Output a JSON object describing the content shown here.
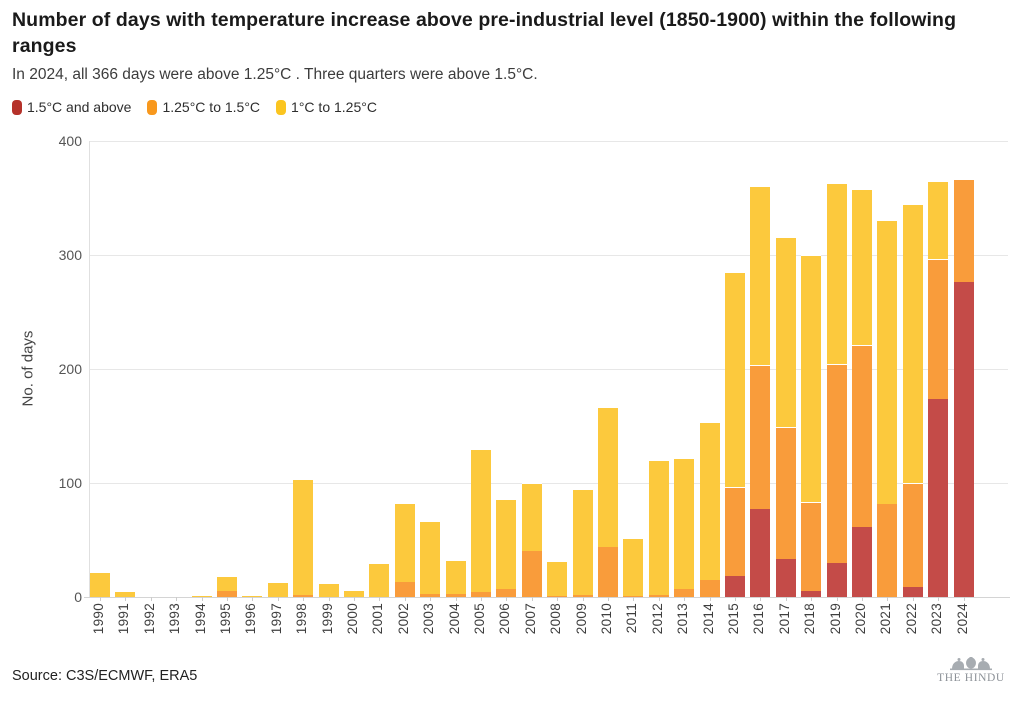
{
  "header": {
    "title": "Number of days with temperature increase above pre-industrial level (1850-1900) within the following ranges",
    "subtitle": "In 2024, all 366 days were above 1.25°C . Three quarters were above 1.5°C."
  },
  "legend": [
    {
      "label": "1.5°C and above",
      "swatch_color": "#b5322a"
    },
    {
      "label": "1.25°C to 1.5°C",
      "swatch_color": "#f8981d"
    },
    {
      "label": "1°C to 1.25°C",
      "swatch_color": "#fbc520"
    }
  ],
  "chart_data": {
    "type": "bar",
    "stacked": true,
    "title": "Number of days with temperature increase above pre-industrial level (1850-1900) within the following ranges",
    "xlabel": "",
    "ylabel": "No. of days",
    "ylim": [
      0,
      400
    ],
    "yticks": [
      0,
      100,
      200,
      300,
      400
    ],
    "grid": true,
    "legend_position": "top",
    "categories": [
      "1990",
      "1991",
      "1992",
      "1993",
      "1994",
      "1995",
      "1996",
      "1997",
      "1998",
      "1999",
      "2000",
      "2001",
      "2002",
      "2003",
      "2004",
      "2005",
      "2006",
      "2007",
      "2008",
      "2009",
      "2010",
      "2011",
      "2012",
      "2013",
      "2014",
      "2015",
      "2016",
      "2017",
      "2018",
      "2019",
      "2020",
      "2021",
      "2022",
      "2023",
      "2024"
    ],
    "series": [
      {
        "name": "1.5°C and above",
        "color": "#c44b48",
        "values": [
          0,
          0,
          0,
          0,
          0,
          0,
          0,
          0,
          0,
          0,
          0,
          0,
          0,
          0,
          0,
          0,
          0,
          0,
          0,
          0,
          0,
          0,
          0,
          0,
          0,
          18,
          77,
          33,
          5,
          30,
          61,
          0,
          9,
          174,
          276
        ]
      },
      {
        "name": "1.25°C to 1.5°C",
        "color": "#f99c3b",
        "values": [
          0,
          0,
          0,
          0,
          0,
          5,
          0,
          0,
          2,
          0,
          0,
          0,
          13,
          3,
          3,
          4,
          7,
          40,
          1,
          2,
          44,
          1,
          2,
          7,
          15,
          78,
          126,
          116,
          78,
          175,
          160,
          82,
          91,
          123,
          90
        ]
      },
      {
        "name": "1°C to 1.25°C",
        "color": "#fcc93d",
        "values": [
          21,
          4,
          0,
          0,
          1,
          13,
          1,
          12,
          102,
          11,
          5,
          29,
          69,
          64,
          30,
          125,
          79,
          60,
          31,
          93,
          123,
          51,
          118,
          115,
          139,
          189,
          157,
          167,
          217,
          159,
          137,
          249,
          245,
          68,
          0
        ]
      }
    ],
    "bar_totals": [
      21,
      4,
      0,
      0,
      1,
      18,
      1,
      12,
      104,
      11,
      5,
      29,
      82,
      67,
      33,
      129,
      86,
      100,
      32,
      95,
      167,
      52,
      120,
      122,
      154,
      285,
      360,
      316,
      300,
      364,
      358,
      331,
      345,
      365,
      366
    ]
  },
  "footer": {
    "source": "Source: C3S/ECMWF, ERA5",
    "logo_text": "THE HINDU"
  }
}
